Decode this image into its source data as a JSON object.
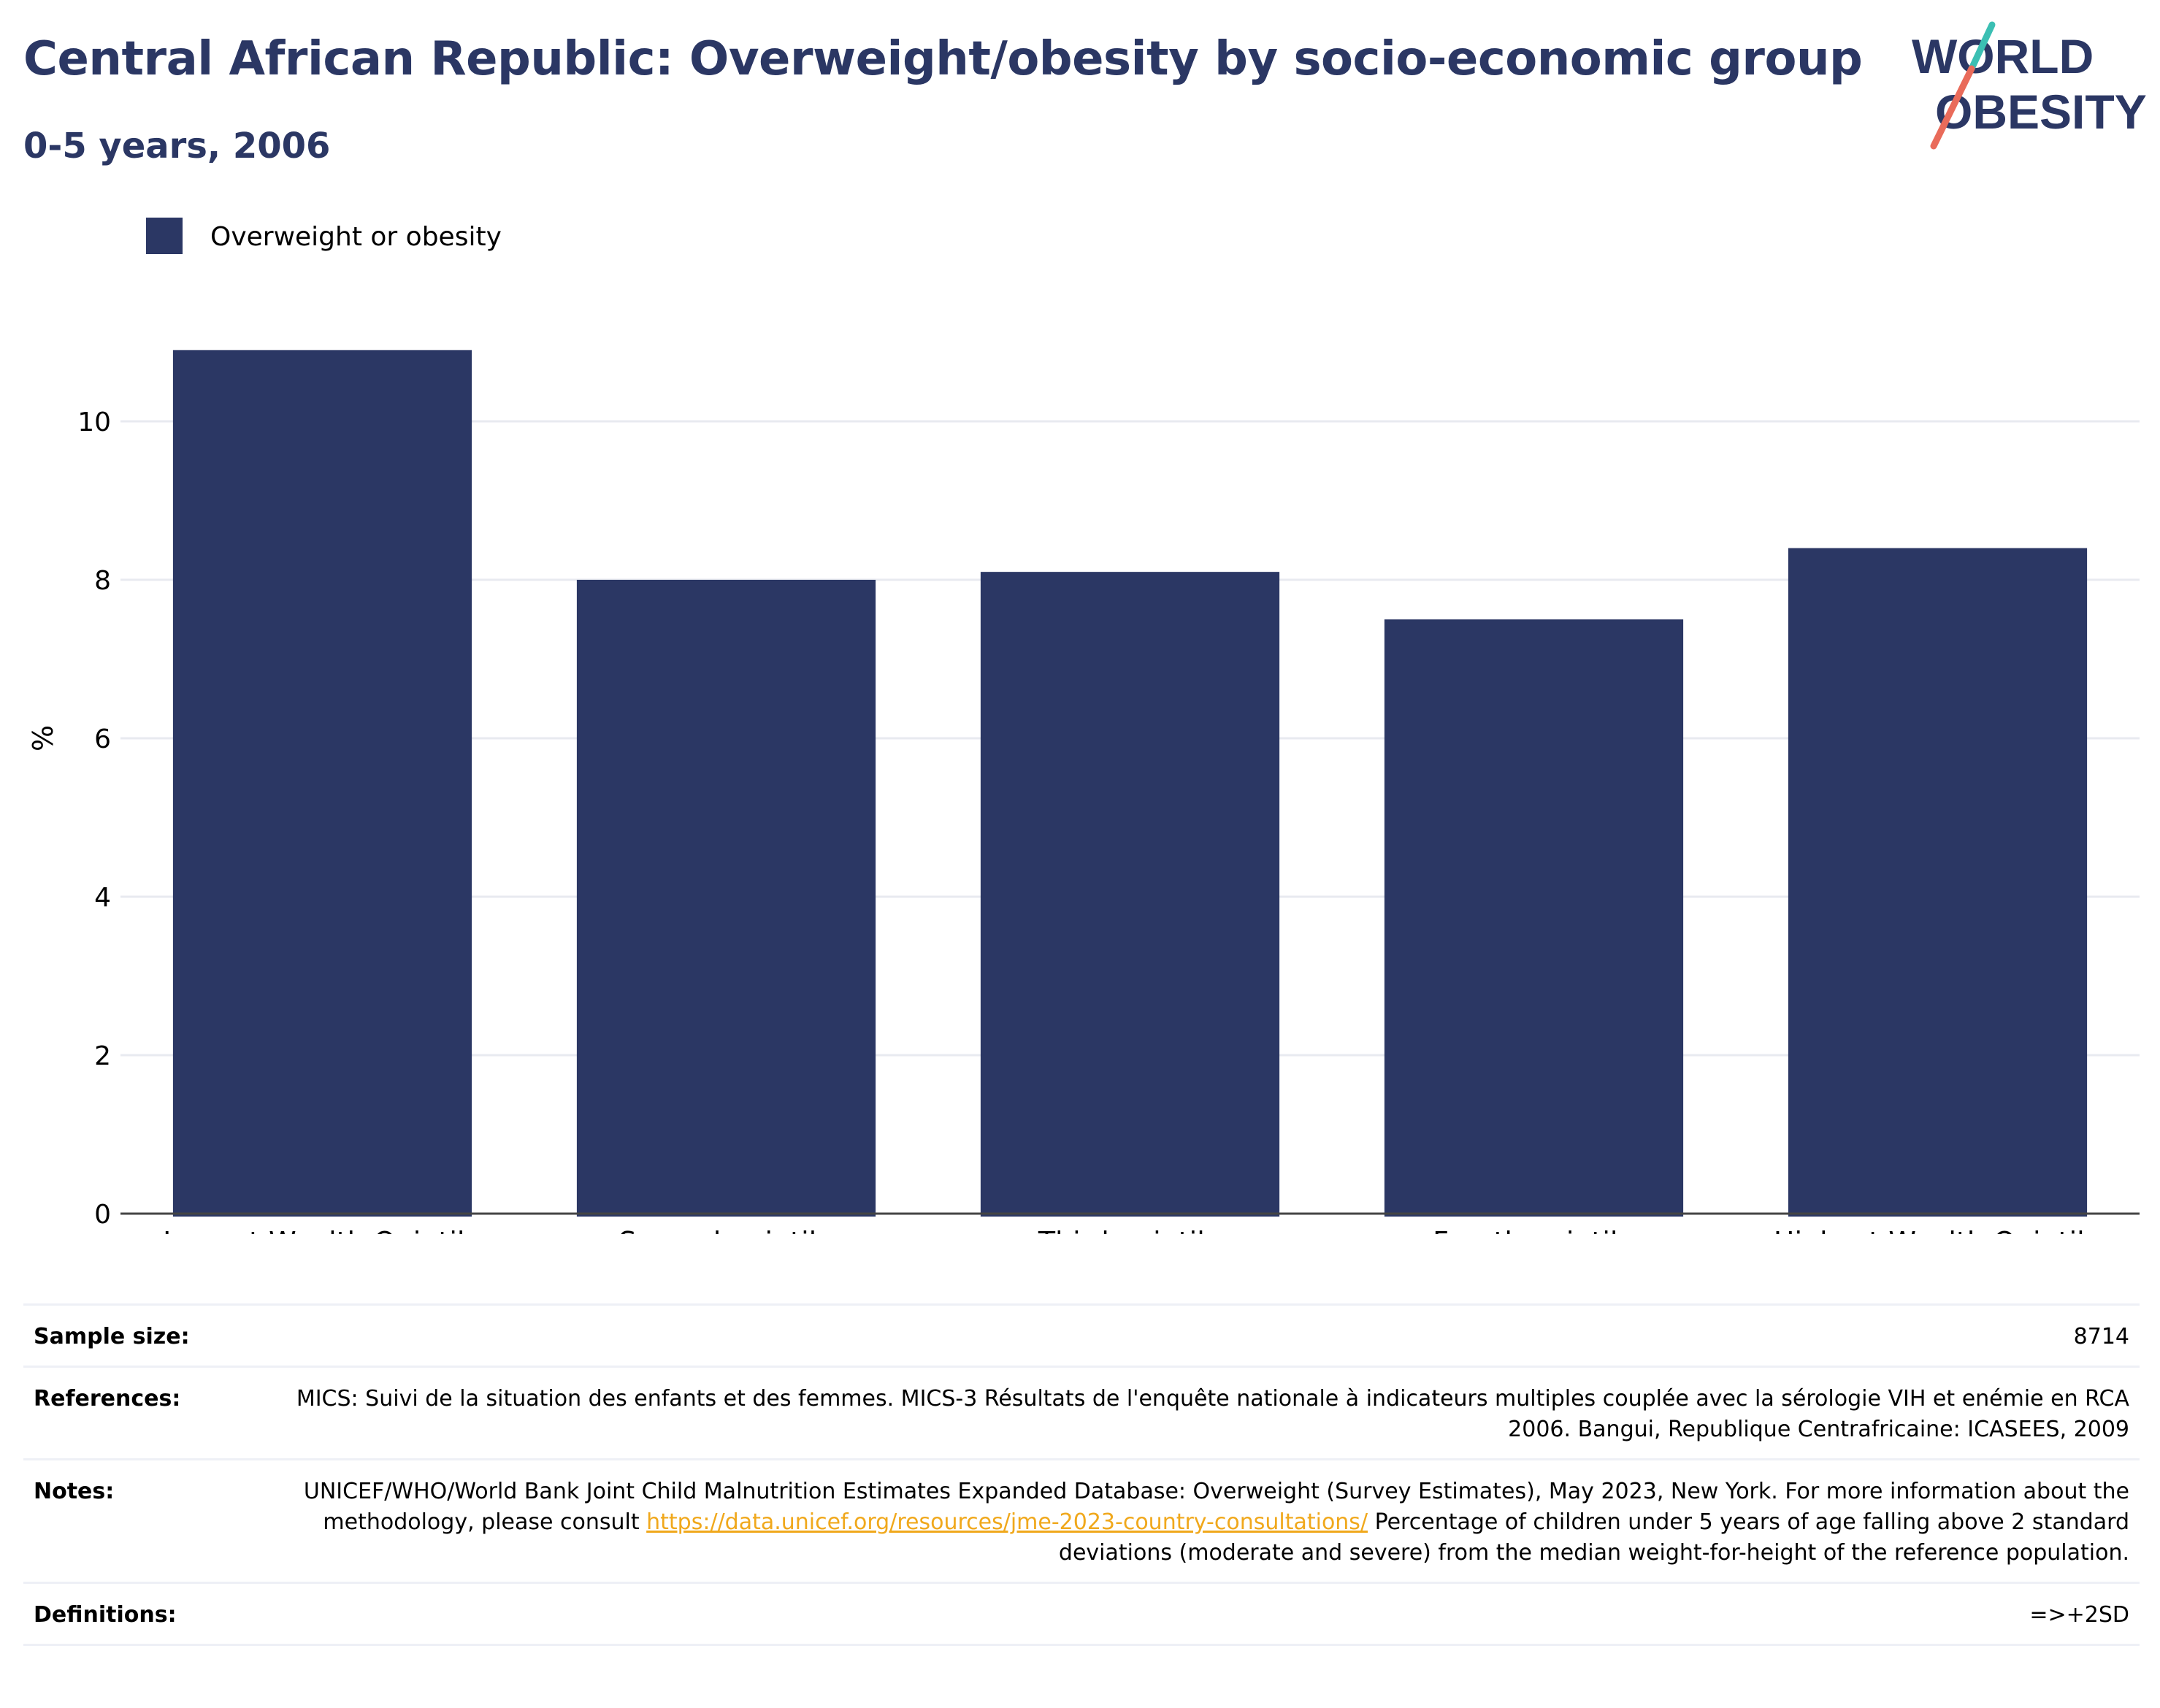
{
  "header": {
    "title": "Central African Republic: Overweight/obesity by socio-economic group",
    "subtitle": "0-5 years, 2006"
  },
  "logo": {
    "line1": "WORLD",
    "line2": "OBESITY"
  },
  "colors": {
    "title": "#2b3764",
    "bar": "#2b3764",
    "link": "#f0a81c",
    "logo_teal": "#3bbfb3",
    "logo_coral": "#e96b5a"
  },
  "chart_data": {
    "type": "bar",
    "categories": [
      "Lowest Wealth Quintile",
      "Second quintile",
      "Third quintile",
      "Fourth quintile",
      "Highest Wealth Quintile"
    ],
    "series": [
      {
        "name": "Overweight or obesity",
        "values": [
          10.9,
          8.0,
          8.1,
          7.5,
          8.4
        ]
      }
    ],
    "ylabel": "%",
    "xlabel": "",
    "ylim": [
      0,
      12
    ],
    "yticks": [
      0,
      2,
      4,
      6,
      8,
      10
    ],
    "grid": true,
    "legend": "top-left"
  },
  "info": {
    "sample_size_label": "Sample size:",
    "sample_size_value": "8714",
    "references_label": "References:",
    "references_value": "MICS: Suivi de la situation des enfants et des femmes. MICS-3 Résultats de l'enquête nationale à indicateurs multiples couplée avec la sérologie VIH et enémie en RCA 2006. Bangui, Republique Centrafricaine: ICASEES, 2009",
    "notes_label": "Notes:",
    "notes_text_before": "UNICEF/WHO/World Bank Joint Child Malnutrition Estimates Expanded Database: Overweight (Survey Estimates), May 2023, New York. For more information about the methodology, please consult ",
    "notes_link": "https://data.unicef.org/resources/jme-2023-country-consultations/",
    "notes_text_after": " Percentage of children under 5 years of age falling above 2 standard deviations (moderate and severe) from the median weight-for-height of the reference population.",
    "definitions_label": "Definitions:",
    "definitions_value": "=>+2SD"
  }
}
